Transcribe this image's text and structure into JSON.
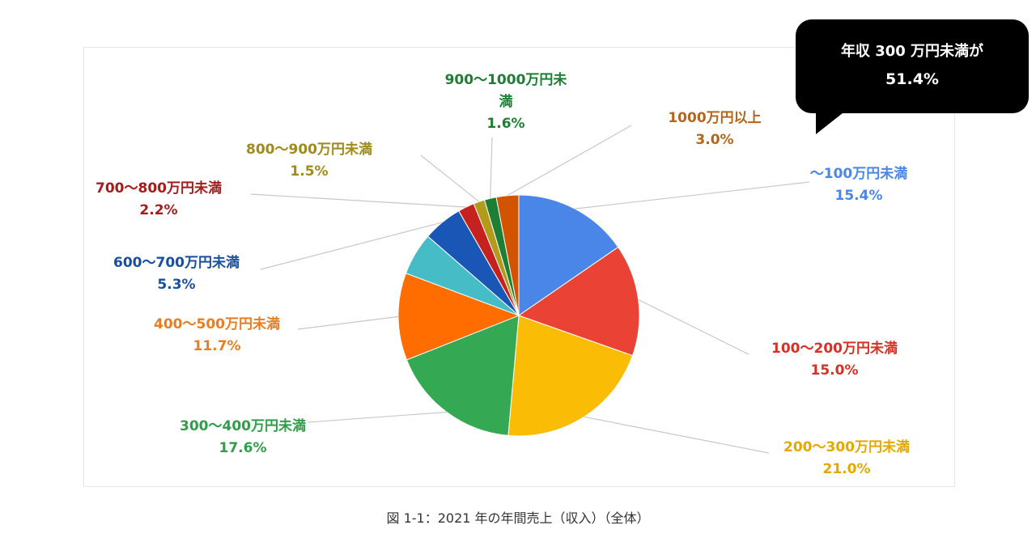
{
  "chart_data": {
    "type": "pie",
    "slices": [
      {
        "label": "〜100万円未満",
        "value": 15.4,
        "percent_label": "15.4%",
        "color": "#4A86E8"
      },
      {
        "label": "100〜200万円未満",
        "value": 15.0,
        "percent_label": "15.0%",
        "color": "#EA4335"
      },
      {
        "label": "200〜300万円未満",
        "value": 21.0,
        "percent_label": "21.0%",
        "color": "#FBBC05"
      },
      {
        "label": "300〜400万円未満",
        "value": 17.6,
        "percent_label": "17.6%",
        "color": "#34A853"
      },
      {
        "label": "400〜500万円未満",
        "value": 11.7,
        "percent_label": "11.7%",
        "color": "#FF6D01"
      },
      {
        "label": "",
        "value": 5.7,
        "percent_label": "",
        "color": "#46BDC6"
      },
      {
        "label": "600〜700万円未満",
        "value": 5.3,
        "percent_label": "5.3%",
        "color": "#1A56B5"
      },
      {
        "label": "700〜800万円未満",
        "value": 2.2,
        "percent_label": "2.2%",
        "color": "#C5221F"
      },
      {
        "label": "800〜900万円未満",
        "value": 1.5,
        "percent_label": "1.5%",
        "color": "#B49A1A"
      },
      {
        "label": "900〜1000万円未満",
        "value": 1.6,
        "percent_label": "1.6%",
        "color": "#1E7E34"
      },
      {
        "label": "1000万円以上",
        "value": 3.0,
        "percent_label": "3.0%",
        "color": "#D35400"
      }
    ],
    "label_colors": [
      "#4A86E8",
      "#D93025",
      "#E5A800",
      "#2E9E48",
      "#E67E22",
      "",
      "#1A4FA0",
      "#A61C1C",
      "#A08A1C",
      "#1E7E34",
      "#B7651A"
    ],
    "callout": {
      "line1": "年収 300 万円未満が",
      "line2": "51.4%"
    },
    "caption": "図 1-1：2021 年の年間売上（収入）（全体）"
  }
}
